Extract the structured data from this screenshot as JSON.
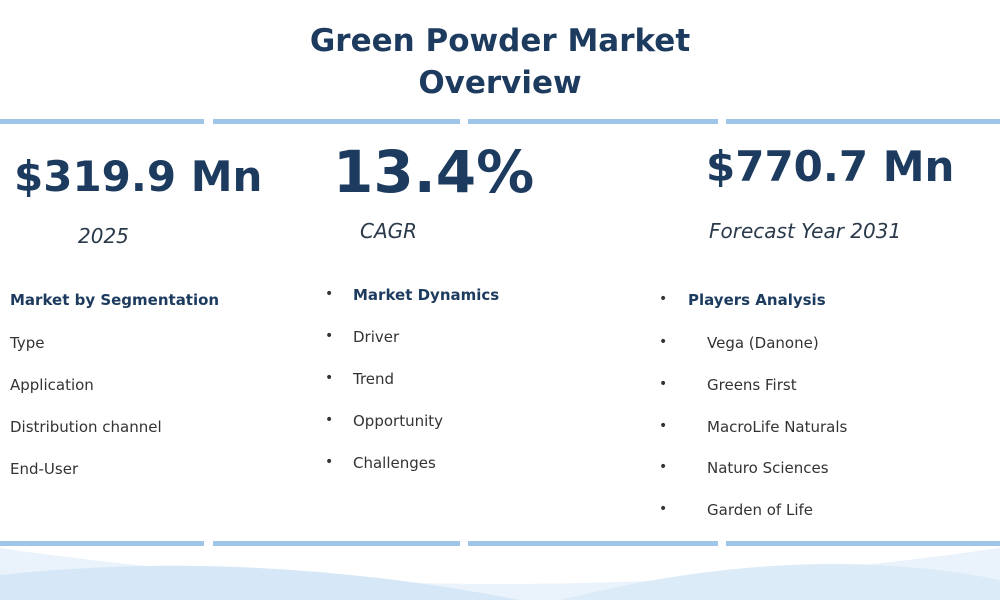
{
  "header": {
    "title": "Green Powder Market Overview"
  },
  "stats": [
    {
      "value": "$319.9 Mn",
      "label": "2025"
    },
    {
      "value": "13.4%",
      "label": "CAGR"
    },
    {
      "value": "$770.7 Mn",
      "label": "Forecast Year 2031"
    }
  ],
  "columns": [
    {
      "heading": "Market by Segmentation",
      "items": [
        "Type",
        "Application",
        "Distribution channel",
        "End-User"
      ]
    },
    {
      "heading": "Market Dynamics",
      "items": [
        "Driver",
        "Trend",
        "Opportunity",
        "Challenges"
      ]
    },
    {
      "heading": "Players Analysis",
      "items": [
        "Vega (Danone)",
        "Greens First",
        "MacroLife Naturals",
        "Naturo Sciences",
        "Garden of Life"
      ]
    }
  ]
}
